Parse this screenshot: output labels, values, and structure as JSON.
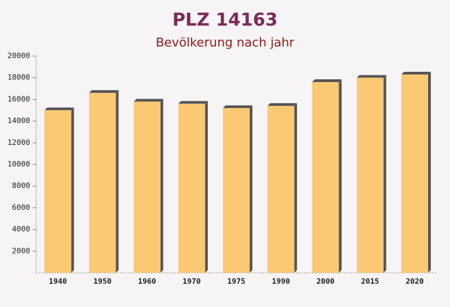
{
  "chart_data": {
    "type": "bar",
    "title": "PLZ 14163",
    "subtitle": "Bevölkerung nach jahr",
    "categories": [
      "1940",
      "1950",
      "1960",
      "1970",
      "1975",
      "1990",
      "2000",
      "2015",
      "2020"
    ],
    "values": [
      15000,
      16600,
      15800,
      15600,
      15200,
      15400,
      17600,
      18000,
      18300
    ],
    "color": "#fcc366",
    "ylim": [
      0,
      20000
    ],
    "yticks": [
      2000,
      4000,
      6000,
      8000,
      10000,
      12000,
      14000,
      16000,
      18000,
      20000
    ],
    "grid": false
  }
}
